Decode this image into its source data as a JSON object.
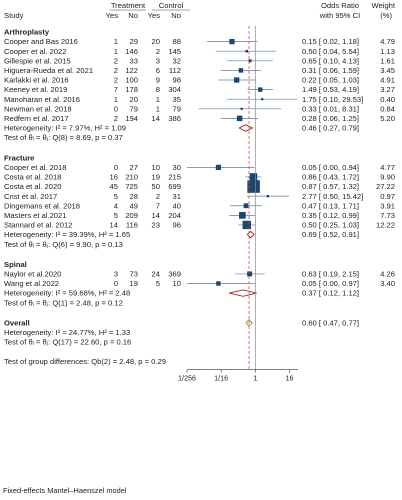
{
  "header": {
    "study": "Study",
    "treatment": "Treatment",
    "control": "Control",
    "t_yes": "Yes",
    "t_no": "No",
    "c_yes": "Yes",
    "c_no": "No",
    "or_label": "Odds Ratio",
    "ci_label": "with 95% CI",
    "weight_label": "Weight",
    "weight_unit": "(%)"
  },
  "footer": "Fixed-effects Mantel–Haenszel model",
  "chart_data": {
    "type": "forest",
    "x_scale": "log2",
    "xlim": [
      0.0039,
      32
    ],
    "x_ticks": [
      {
        "value": 0.00390625,
        "label": "1/256"
      },
      {
        "value": 0.0625,
        "label": "1/16"
      },
      {
        "value": 1,
        "label": "1"
      },
      {
        "value": 16,
        "label": "16"
      }
    ],
    "reference_line": 1,
    "overall_line": 0.6,
    "groups": [
      {
        "name": "Arthroplasty",
        "studies": [
          {
            "study": "Cooper and Bas 2016",
            "t_yes": "1",
            "t_no": "29",
            "c_yes": "20",
            "c_no": "88",
            "or": 0.15,
            "lo": 0.02,
            "hi": 1.18,
            "or_text": "0.15 [ 0.02,  1.18]",
            "weight": "4.79"
          },
          {
            "study": "Cooper et al. 2022",
            "t_yes": "1",
            "t_no": "146",
            "c_yes": "2",
            "c_no": "145",
            "or": 0.5,
            "lo": 0.04,
            "hi": 5.54,
            "or_text": "0.50 [ 0.04,  5.54]",
            "weight": "1.13"
          },
          {
            "study": "Gillespie et al. 2015",
            "t_yes": "2",
            "t_no": "33",
            "c_yes": "3",
            "c_no": "32",
            "or": 0.65,
            "lo": 0.1,
            "hi": 4.13,
            "or_text": "0.65 [ 0.10,  4.13]",
            "weight": "1.61"
          },
          {
            "study": "Higuera-Rueda et al. 2021",
            "t_yes": "2",
            "t_no": "122",
            "c_yes": "6",
            "c_no": "112",
            "or": 0.31,
            "or_text": "0.31 [ 0.06,  1.59]",
            "lo": 0.06,
            "hi": 1.59,
            "weight": "3.45"
          },
          {
            "study": "Karlakki et al. 2016",
            "t_yes": "2",
            "t_no": "100",
            "c_yes": "9",
            "c_no": "98",
            "or": 0.22,
            "lo": 0.05,
            "hi": 1.03,
            "or_text": "0.22 [ 0.05,  1.03]",
            "weight": "4.91"
          },
          {
            "study": "Keeney et al. 2019",
            "t_yes": "7",
            "t_no": "178",
            "c_yes": "8",
            "c_no": "304",
            "or": 1.49,
            "lo": 0.53,
            "hi": 4.19,
            "or_text": "1.49 [ 0.53,  4.19]",
            "weight": "3.27"
          },
          {
            "study": "Manoharan et al. 2016",
            "t_yes": "1",
            "t_no": "20",
            "c_yes": "1",
            "c_no": "35",
            "or": 1.75,
            "lo": 0.1,
            "hi": 29.53,
            "or_text": "1.75 [ 0.10, 29.53]",
            "weight": "0.40"
          },
          {
            "study": "Newman et al. 2018",
            "t_yes": "0",
            "t_no": "79",
            "c_yes": "1",
            "c_no": "79",
            "or": 0.33,
            "lo": 0.01,
            "hi": 8.31,
            "or_text": "0.33 [ 0.01,  8.31]",
            "weight": "0.84"
          },
          {
            "study": "Redfern et al. 2017",
            "t_yes": "2",
            "t_no": "194",
            "c_yes": "14",
            "c_no": "386",
            "or": 0.28,
            "lo": 0.06,
            "hi": 1.25,
            "or_text": "0.28 [ 0.06,  1.25]",
            "weight": "5.20"
          }
        ],
        "pooled": {
          "or": 0.46,
          "lo": 0.27,
          "hi": 0.79,
          "or_text": "0.46 [ 0.27,  0.79]"
        },
        "heterogeneity": "Heterogeneity: I² = 7.97%, H² = 1.09",
        "test": "Test of θᵢ = θⱼ: Q(8) = 8.69, p = 0.37"
      },
      {
        "name": "Fracture",
        "studies": [
          {
            "study": "Cooper et al. 2018",
            "t_yes": "0",
            "t_no": "27",
            "c_yes": "10",
            "c_no": "30",
            "or": 0.05,
            "lo": 0.0,
            "hi": 0.94,
            "or_text": "0.05 [ 0.00,  0.94]",
            "weight": "4.77"
          },
          {
            "study": "Costa et al. 2018",
            "t_yes": "16",
            "t_no": "210",
            "c_yes": "19",
            "c_no": "215",
            "or": 0.86,
            "lo": 0.43,
            "hi": 1.72,
            "or_text": "0.86 [ 0.43,  1.72]",
            "weight": "9.90"
          },
          {
            "study": "Costa et al. 2020",
            "t_yes": "45",
            "t_no": "725",
            "c_yes": "50",
            "c_no": "699",
            "or": 0.87,
            "lo": 0.57,
            "hi": 1.32,
            "or_text": "0.87 [ 0.57,  1.32]",
            "weight": "27.22"
          },
          {
            "study": "Crist et al. 2017",
            "t_yes": "5",
            "t_no": "28",
            "c_yes": "2",
            "c_no": "31",
            "or": 2.77,
            "lo": 0.5,
            "hi": 15.42,
            "or_text": "2.77 [ 0.50, 15.42]",
            "weight": "0.97"
          },
          {
            "study": "Dingemans et al. 2018",
            "t_yes": "4",
            "t_no": "49",
            "c_yes": "7",
            "c_no": "40",
            "or": 0.47,
            "lo": 0.13,
            "hi": 1.71,
            "or_text": "0.47 [ 0.13,  1.71]",
            "weight": "3.91"
          },
          {
            "study": "Masters et al.2021",
            "t_yes": "5",
            "t_no": "209",
            "c_yes": "14",
            "c_no": "204",
            "or": 0.35,
            "lo": 0.12,
            "hi": 0.99,
            "or_text": "0.35 [ 0.12,  0.99]",
            "weight": "7.73"
          },
          {
            "study": "Stannard et al. 2012",
            "t_yes": "14",
            "t_no": "116",
            "c_yes": "23",
            "c_no": "96",
            "or": 0.5,
            "lo": 0.25,
            "hi": 1.03,
            "or_text": "0.50 [ 0.25,  1.03]",
            "weight": "12.22"
          }
        ],
        "pooled": {
          "or": 0.69,
          "lo": 0.52,
          "hi": 0.91,
          "or_text": "0.69 [ 0.52,  0.91]"
        },
        "heterogeneity": "Heterogeneity: I² = 39.39%, H² = 1.65",
        "test": "Test of θᵢ = θⱼ: Q(6) = 9.90, p = 0.13"
      },
      {
        "name": "Spinal",
        "studies": [
          {
            "study": "Naylor et al.2020",
            "t_yes": "3",
            "t_no": "73",
            "c_yes": "24",
            "c_no": "369",
            "or": 0.63,
            "lo": 0.19,
            "hi": 2.15,
            "or_text": "0.63 [ 0.19,  2.15]",
            "weight": "4.26"
          },
          {
            "study": "Wang et al.2022",
            "t_yes": "0",
            "t_no": "19",
            "c_yes": "5",
            "c_no": "10",
            "or": 0.05,
            "lo": 0.0,
            "hi": 0.97,
            "or_text": "0.05 [ 0.00,  0.97]",
            "weight": "3.40"
          }
        ],
        "pooled": {
          "or": 0.37,
          "lo": 0.12,
          "hi": 1.12,
          "or_text": "0.37 [ 0.12,  1.12]"
        },
        "heterogeneity": "Heterogeneity: I² = 59.68%, H² = 2.48",
        "test": "Test of θᵢ = θⱼ: Q(1) = 2.48, p = 0.12"
      }
    ],
    "overall": {
      "name": "Overall",
      "pooled": {
        "or": 0.6,
        "lo": 0.47,
        "hi": 0.77,
        "or_text": "0.60 [ 0.47,  0.77]"
      },
      "heterogeneity": "Heterogeneity: I² = 24.77%, H² = 1.33",
      "test": "Test of θᵢ = θⱼ: Q(17) = 22.60, p = 0.16"
    },
    "group_test": "Test of group differences: Qb(2) = 2.48, p = 0.29",
    "colors": {
      "box": "#1a476f",
      "ci_line": "#5b7fa3",
      "reference_line": "#888888",
      "overall_line": "#e0323c",
      "diamond": "#a0282c",
      "overall_diamond": "#8a8a2a"
    }
  }
}
